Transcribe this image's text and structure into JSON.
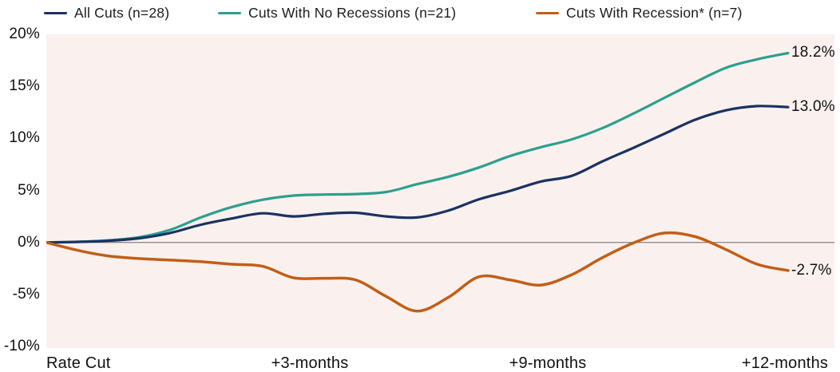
{
  "colors": {
    "background": "#ffffff",
    "plot_bg": "#faf1ee",
    "zero_line": "#8e8e8e",
    "text": "#1a1a1a"
  },
  "chart_data": {
    "type": "line",
    "title": "",
    "xlabel": "",
    "ylabel": "",
    "legend_position": "top",
    "grid": "zero-line-only",
    "ylim": [
      -10.15,
      20
    ],
    "y_ticks": [
      20,
      15,
      10,
      5,
      0,
      -5,
      -10
    ],
    "y_tick_labels": [
      "20%",
      "15%",
      "10%",
      "5%",
      "0%",
      "-5%",
      "-10%"
    ],
    "x_tick_labels": [
      "Rate Cut",
      "+3-months",
      "+9-months",
      "+12-months"
    ],
    "x_unit": "months-after-rate-cut",
    "x": [
      0,
      0.5,
      1,
      1.5,
      2,
      2.5,
      3,
      3.5,
      4,
      4.5,
      5,
      5.5,
      6,
      6.5,
      7,
      7.5,
      8,
      8.5,
      9,
      9.5,
      10,
      10.5,
      11,
      11.5,
      12
    ],
    "series": [
      {
        "name": "Cuts With No Recessions (n=21)",
        "color": "#2d9f8d",
        "line_width": 3.2,
        "end_label": "18.2%",
        "end_value": 18.2,
        "values": [
          0,
          0.05,
          0.2,
          0.5,
          1.2,
          2.4,
          3.4,
          4.1,
          4.5,
          4.6,
          4.65,
          4.85,
          5.6,
          6.3,
          7.2,
          8.3,
          9.15,
          9.9,
          11.0,
          12.4,
          13.9,
          15.4,
          16.8,
          17.6,
          18.2
        ]
      },
      {
        "name": "All Cuts (n=28)",
        "color": "#1b3262",
        "line_width": 3.2,
        "end_label": "13.0%",
        "end_value": 13.0,
        "values": [
          0,
          0.05,
          0.15,
          0.4,
          0.9,
          1.7,
          2.3,
          2.8,
          2.5,
          2.75,
          2.85,
          2.5,
          2.4,
          3.05,
          4.15,
          4.95,
          5.85,
          6.4,
          7.8,
          9.1,
          10.45,
          11.8,
          12.7,
          13.1,
          13.0
        ]
      },
      {
        "name": "Cuts With Recession* (n=7)",
        "color": "#c25e17",
        "line_width": 3.5,
        "end_label": "-2.7%",
        "end_value": -2.7,
        "values": [
          0,
          -0.75,
          -1.3,
          -1.55,
          -1.7,
          -1.85,
          -2.1,
          -2.3,
          -3.4,
          -3.45,
          -3.6,
          -5.2,
          -6.6,
          -5.3,
          -3.3,
          -3.6,
          -4.1,
          -3.1,
          -1.45,
          -0.05,
          0.9,
          0.55,
          -0.7,
          -2.1,
          -2.7
        ]
      }
    ]
  }
}
